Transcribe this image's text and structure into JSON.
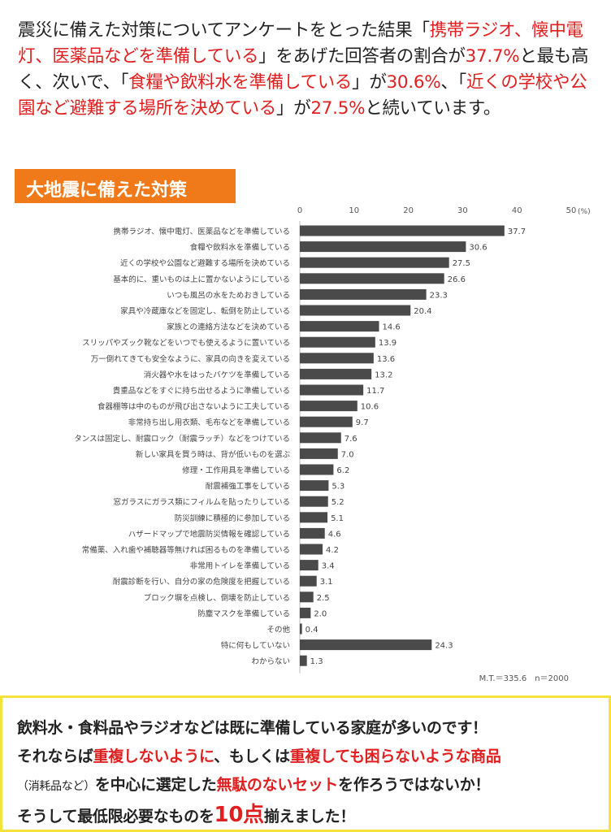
{
  "intro": [
    {
      "t": "震災に備えた対策についてアンケートをとった結果「",
      "red": false
    },
    {
      "t": "携帯ラジオ、懐中電灯、医薬品などを準備している",
      "red": true
    },
    {
      "t": "」をあげた回答者の割合が",
      "red": false
    },
    {
      "t": "37.7%",
      "red": true
    },
    {
      "t": "と最も高く、次いで、「",
      "red": false
    },
    {
      "t": "食糧や飲料水を準備している",
      "red": true
    },
    {
      "t": "」が",
      "red": false
    },
    {
      "t": "30.6%",
      "red": true
    },
    {
      "t": "、「",
      "red": false
    },
    {
      "t": "近くの学校や公園など避難する場所を決めている",
      "red": true
    },
    {
      "t": "」が",
      "red": false
    },
    {
      "t": "27.5%",
      "red": true
    },
    {
      "t": "と続いています。",
      "red": false
    }
  ],
  "banner": "大地震に備えた対策",
  "chart_data": {
    "type": "bar",
    "orientation": "horizontal",
    "title": "大地震に備えた対策",
    "unit": "(%)",
    "xlim": [
      0,
      50
    ],
    "ticks": [
      0,
      10,
      20,
      30,
      40,
      50
    ],
    "categories": [
      "携帯ラジオ、懐中電灯、医薬品などを準備している",
      "食糧や飲料水を準備している",
      "近くの学校や公園など避難する場所を決めている",
      "基本的に、重いものは上に置かないようにしている",
      "いつも風呂の水をためおきしている",
      "家具や冷蔵庫などを固定し、転倒を防止している",
      "家族との連絡方法などを決めている",
      "スリッパやズック靴などをいつでも使えるように置いている",
      "万一倒れてきても安全なように、家具の向きを変えている",
      "消火器や水をはったバケツを準備している",
      "貴重品などをすぐに持ち出せるように準備している",
      "食器棚等は中のものが飛び出さないように工夫している",
      "非常持ち出し用衣類、毛布などを準備している",
      "タンスは固定し、耐震ロック（耐震ラッチ）などをつけている",
      "新しい家具を買う時は、背が低いものを選ぶ",
      "修理・工作用具を準備している",
      "耐震補強工事をしている",
      "窓ガラスにガラス類にフィルムを貼ったりしている",
      "防災訓練に積極的に参加している",
      "ハザードマップで地震防災情報を確認している",
      "常備薬、入れ歯や補聴器等無ければ困るものを準備している",
      "非常用トイレを準備している",
      "耐震診断を行い、自分の家の危険度を把握している",
      "ブロック塀を点検し、倒壊を防止している",
      "防塵マスクを準備している",
      "その他",
      "特に何もしていない",
      "わからない"
    ],
    "values": [
      37.7,
      30.6,
      27.5,
      26.6,
      23.3,
      20.4,
      14.6,
      13.9,
      13.6,
      13.2,
      11.7,
      10.6,
      9.7,
      7.6,
      7.0,
      6.2,
      5.3,
      5.2,
      5.1,
      4.6,
      4.2,
      3.4,
      3.1,
      2.5,
      2.0,
      0.4,
      24.3,
      1.3
    ],
    "footnote": "M.T.＝335.6　n＝2000",
    "bar_color": "#4a4a4a"
  },
  "note": {
    "l1": "飲料水・食料品やラジオなどは既に準備している家庭が多いのです！",
    "l2a": "それならば",
    "l2b": "重複しないように",
    "l2c": "、もしくは",
    "l2d": "重複しても困らないような商品",
    "l3a": "（消耗品など）",
    "l3b": "を中心に選定した",
    "l3c": "無駄のないセット",
    "l3d": "を作ろうではないか！",
    "l4a": "そうして最低限必要なものを",
    "l4b": "10点",
    "l4c": "揃えました！"
  }
}
